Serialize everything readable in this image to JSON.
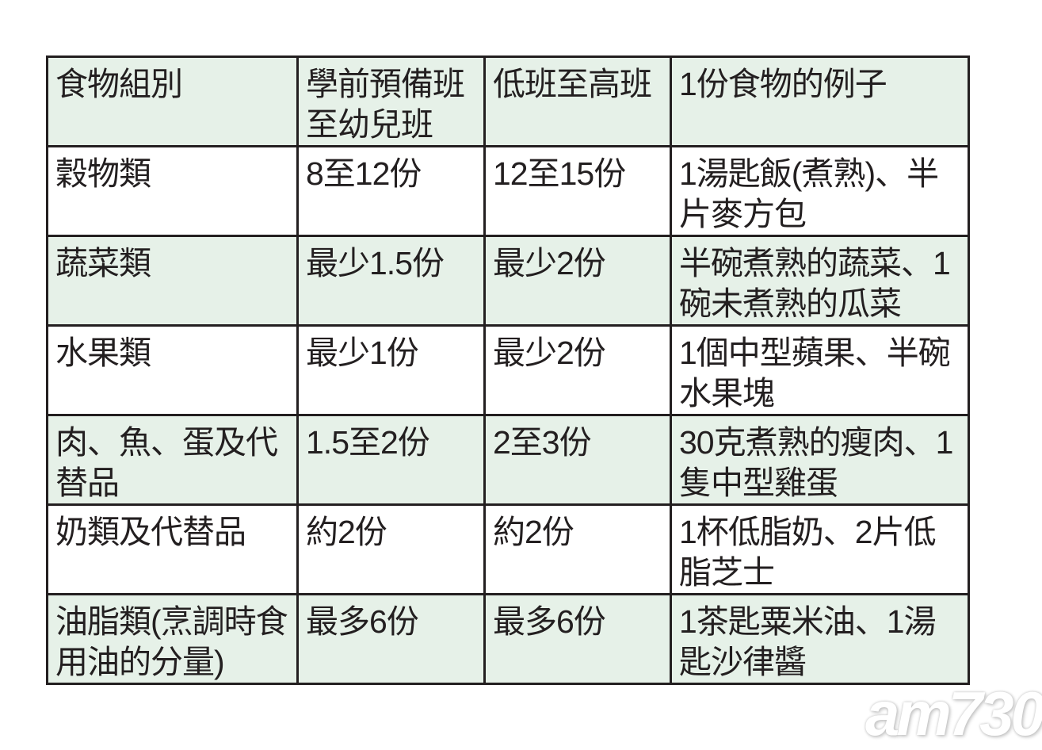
{
  "table": {
    "headers": [
      "食物組別",
      "學前預備班至幼兒班",
      "低班至高班",
      "1份食物的例子"
    ],
    "rows": [
      [
        "穀物類",
        "8至12份",
        "12至15份",
        "1湯匙飯(煮熟)、半片麥方包"
      ],
      [
        "蔬菜類",
        "最少1.5份",
        "最少2份",
        "半碗煮熟的蔬菜、1碗未煮熟的瓜菜"
      ],
      [
        "水果類",
        "最少1份",
        "最少2份",
        "1個中型蘋果、半碗水果塊"
      ],
      [
        "肉、魚、蛋及代替品",
        "1.5至2份",
        "2至3份",
        "30克煮熟的瘦肉、1隻中型雞蛋"
      ],
      [
        "奶類及代替品",
        "約2份",
        "約2份",
        "1杯低脂奶、2片低脂芝士"
      ],
      [
        "油脂類(烹調時食用油的分量)",
        "最多6份",
        "最多6份",
        "1茶匙粟米油、1湯匙沙律醬"
      ]
    ],
    "header_color": "#e6f1e8",
    "stripe_color": "#e6f1e8"
  },
  "watermark": "am730"
}
